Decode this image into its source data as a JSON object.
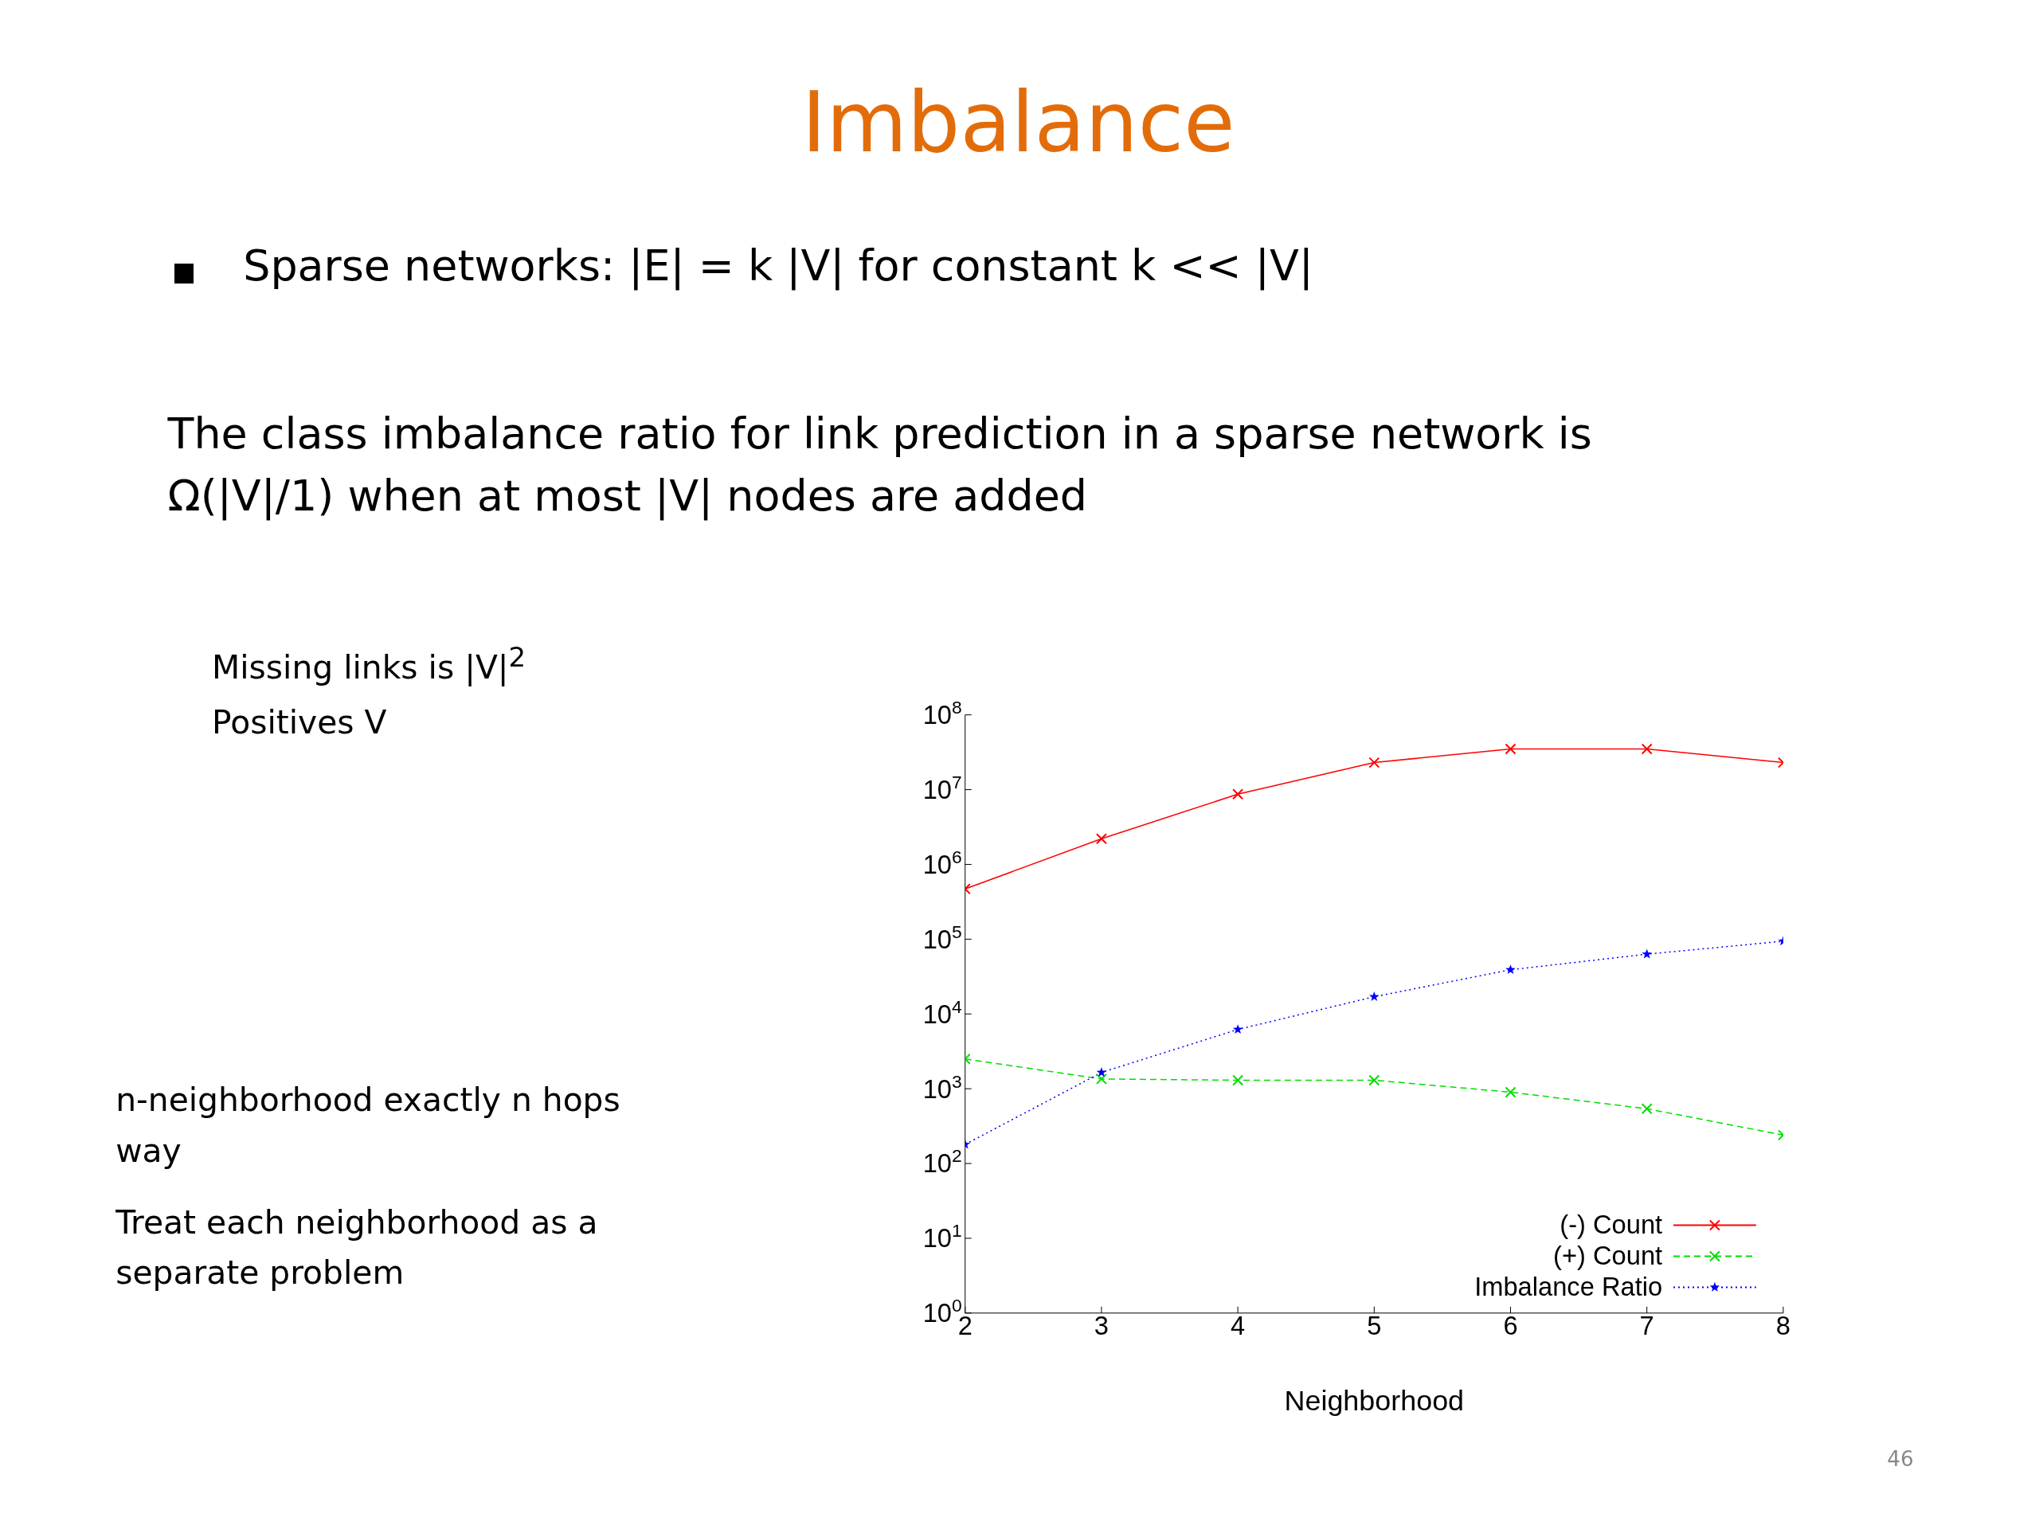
{
  "chart_data": {
    "type": "line",
    "title": "Imbalance",
    "annotations": [
      "Sparse networks: |E| = k |V| for constant k << |V|",
      "The class imbalance ratio for link prediction in a sparse network is Ω(|V|/1) when at most |V| nodes are added",
      "Missing links is |V|$^{2}$",
      "Positives V",
      "n-neighborhood exactly n hops way",
      "Treat each neighborhood as a separate problem",
      "46"
    ],
    "xlabel": "Neighborhood",
    "x": [
      2,
      3,
      4,
      5,
      6,
      7,
      8
    ],
    "series": [
      {
        "name": "(-) Count",
        "color": "#ff0000",
        "marker": "cross",
        "line_style": "solid",
        "values": [
          470000,
          2200000,
          8700000,
          23000000,
          35000000,
          35000000,
          23000000
        ]
      },
      {
        "name": "(+) Count",
        "color": "#00dd00",
        "marker": "cross",
        "line_style": "dashed",
        "values": [
          2500,
          1350,
          1300,
          1300,
          900,
          540,
          240
        ]
      },
      {
        "name": "Imbalance Ratio",
        "color": "#0000ff",
        "marker": "star",
        "line_style": "dotted",
        "values": [
          180,
          1650,
          6200,
          17000,
          39000,
          63000,
          94000
        ]
      }
    ],
    "log": "y",
    "xlim": [
      2,
      8
    ],
    "xticks": [
      2,
      3,
      4,
      5,
      6,
      7,
      8
    ],
    "ylim": [
      1,
      100000000
    ],
    "yticks": [
      {
        "value": 1,
        "label": "10$^{0}$"
      },
      {
        "value": 10,
        "label": "10$^{1}$"
      },
      {
        "value": 100,
        "label": "10$^{2}$"
      },
      {
        "value": 1000,
        "label": "10$^{3}$"
      },
      {
        "value": 10000,
        "label": "10$^{4}$"
      },
      {
        "value": 100000,
        "label": "10$^{5}$"
      },
      {
        "value": 1000000,
        "label": "10$^{6}$"
      },
      {
        "value": 10000000,
        "label": "10$^{7}$"
      },
      {
        "value": 100000000,
        "label": "10$^{8}$"
      }
    ],
    "legend": "bottom right",
    "grid": false
  }
}
